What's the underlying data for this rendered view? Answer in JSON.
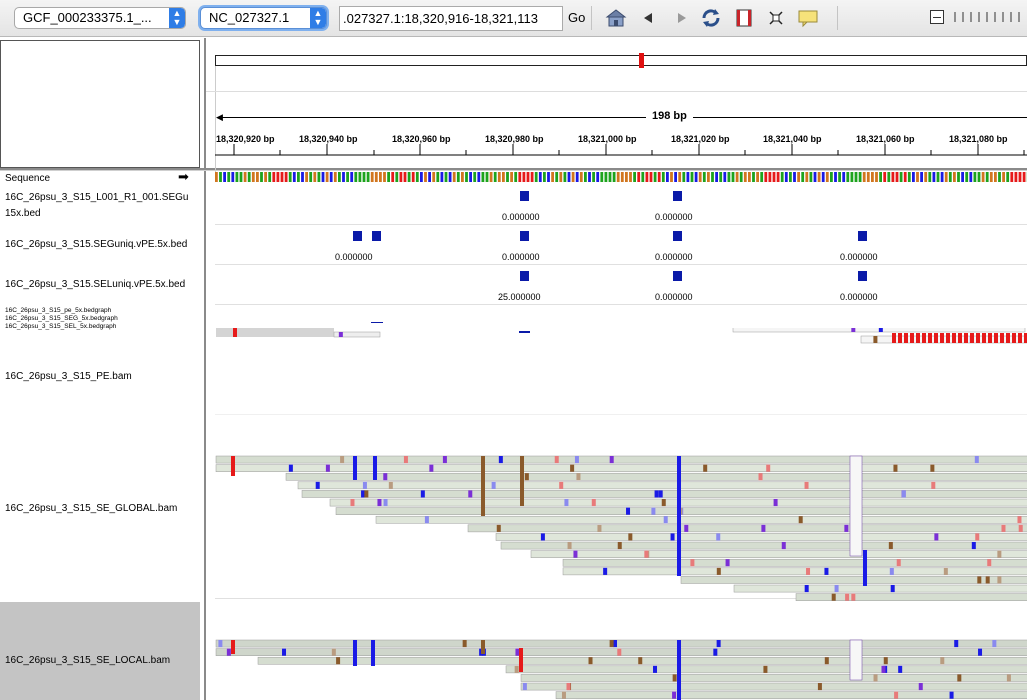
{
  "toolbar": {
    "genome_select": "GCF_000233375.1_...",
    "chromosome_select": "NC_027327.1",
    "locus_value": ".027327.1:18,320,916-18,321,113",
    "go_label": "Go"
  },
  "ruler": {
    "span_label": "198 bp",
    "ticks": [
      "18,320,920 bp",
      "18,320,940 bp",
      "18,320,960 bp",
      "18,320,980 bp",
      "18,321,000 bp",
      "18,321,020 bp",
      "18,321,040 bp",
      "18,321,060 bp",
      "18,321,080 bp"
    ]
  },
  "tracks": {
    "sequence": "Sequence",
    "segu_line1": "16C_26psu_3_S15_L001_R1_001.SEGu",
    "segu_line2": "15x.bed",
    "seguniq": "16C_26psu_3_S15.SEGuniq.vPE.5x.bed",
    "seluniq": "16C_26psu_3_S15.SELuniq.vPE.5x.bed",
    "bg1": "16C_26psu_3_S15_pe_5x.bedgraph",
    "bg2": "16C_26psu_3_S15_SEG_5x.bedgraph",
    "bg3": "16C_26psu_3_S15_SEL_5x.bedgraph",
    "pe_bam": "16C_26psu_3_S15_PE.bam",
    "se_global": "16C_26psu_3_S15_SE_GLOBAL.bam",
    "se_local": "16C_26psu_3_S15_SE_LOCAL.bam"
  },
  "bed_values": {
    "segu": [
      "0.000000",
      "0.000000"
    ],
    "seguniq": [
      "0.000000",
      "0.000000",
      "0.000000",
      "0.000000"
    ],
    "seluniq": [
      "25.000000",
      "0.000000",
      "0.000000"
    ]
  },
  "colors": {
    "feature": "#0a1aa8",
    "read": "#d7dfd2",
    "base_A": "#1da31d",
    "base_C": "#1a1ae6",
    "base_G": "#d1761f",
    "base_T": "#e61a1a",
    "insertion": "#7b2fd6",
    "deletion_brown": "#8a5a2b"
  },
  "icons": [
    "home-icon",
    "back-icon",
    "forward-icon",
    "refresh-icon",
    "roi-icon",
    "resize-icon",
    "popup-text-icon"
  ]
}
